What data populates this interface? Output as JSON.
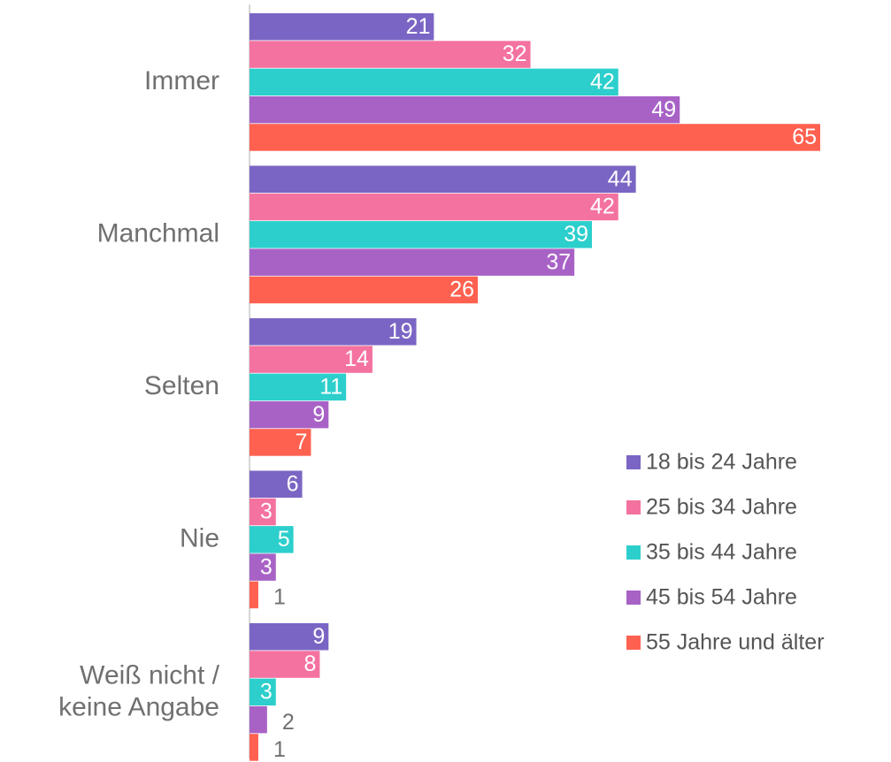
{
  "chart_data": {
    "type": "barh",
    "categories": [
      "Immer",
      "Manchmal",
      "Selten",
      "Nie",
      "Weiß nicht /\nkeine Angabe"
    ],
    "series": [
      {
        "name": "18 bis 24 Jahre",
        "color": "#7b65c4",
        "values": [
          21,
          44,
          19,
          6,
          9
        ]
      },
      {
        "name": "25 bis 34 Jahre",
        "color": "#f472a0",
        "values": [
          32,
          42,
          14,
          3,
          8
        ]
      },
      {
        "name": "35 bis 44 Jahre",
        "color": "#2ccfcc",
        "values": [
          42,
          39,
          11,
          5,
          3
        ]
      },
      {
        "name": "45 bis 54 Jahre",
        "color": "#a862c6",
        "values": [
          49,
          37,
          9,
          3,
          2
        ]
      },
      {
        "name": "55 Jahre und älter",
        "color": "#ff6150",
        "values": [
          65,
          26,
          7,
          1,
          1
        ]
      }
    ],
    "xlim": [
      0,
      65
    ],
    "legend": "right"
  }
}
